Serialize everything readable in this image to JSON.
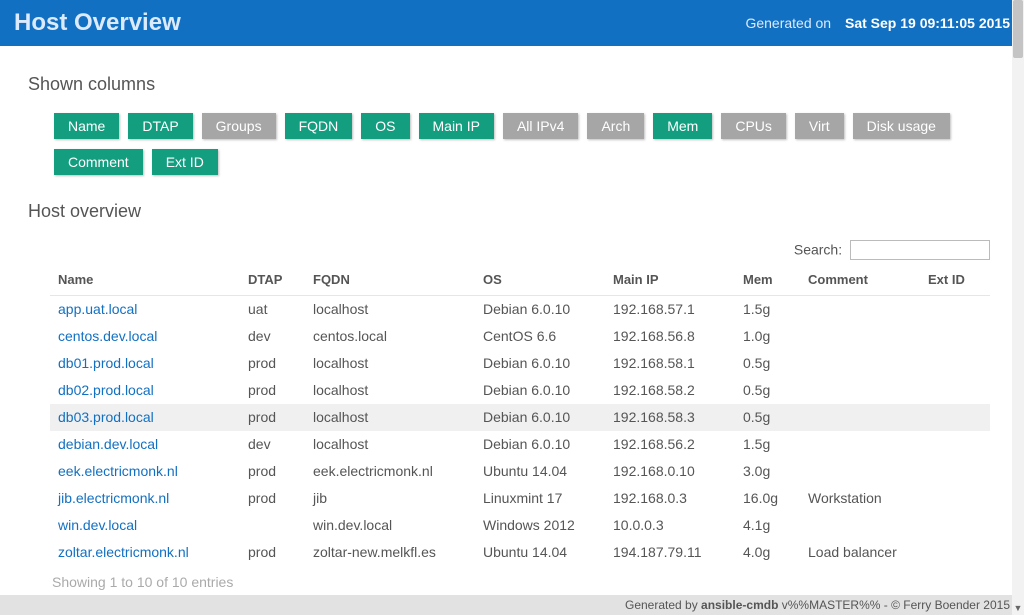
{
  "header": {
    "title": "Host Overview",
    "generated_label": "Generated on",
    "generated_ts": "Sat Sep 19 09:11:05 2015"
  },
  "columns_section_title": "Shown columns",
  "column_toggles": [
    {
      "label": "Name",
      "active": true
    },
    {
      "label": "DTAP",
      "active": true
    },
    {
      "label": "Groups",
      "active": false
    },
    {
      "label": "FQDN",
      "active": true
    },
    {
      "label": "OS",
      "active": true
    },
    {
      "label": "Main IP",
      "active": true
    },
    {
      "label": "All IPv4",
      "active": false
    },
    {
      "label": "Arch",
      "active": false
    },
    {
      "label": "Mem",
      "active": true
    },
    {
      "label": "CPUs",
      "active": false
    },
    {
      "label": "Virt",
      "active": false
    },
    {
      "label": "Disk usage",
      "active": false
    },
    {
      "label": "Comment",
      "active": true
    },
    {
      "label": "Ext ID",
      "active": true
    }
  ],
  "overview_title": "Host overview",
  "search_label": "Search:",
  "search_value": "",
  "table": {
    "columns": [
      "Name",
      "DTAP",
      "FQDN",
      "OS",
      "Main IP",
      "Mem",
      "Comment",
      "Ext ID"
    ],
    "col_widths": [
      "190px",
      "65px",
      "170px",
      "130px",
      "130px",
      "65px",
      "120px",
      "70px"
    ],
    "rows": [
      {
        "name": "app.uat.local",
        "dtap": "uat",
        "fqdn": "localhost",
        "os": "Debian 6.0.10",
        "main_ip": "192.168.57.1",
        "mem": "1.5g",
        "comment": "",
        "ext_id": ""
      },
      {
        "name": "centos.dev.local",
        "dtap": "dev",
        "fqdn": "centos.local",
        "os": "CentOS 6.6",
        "main_ip": "192.168.56.8",
        "mem": "1.0g",
        "comment": "",
        "ext_id": ""
      },
      {
        "name": "db01.prod.local",
        "dtap": "prod",
        "fqdn": "localhost",
        "os": "Debian 6.0.10",
        "main_ip": "192.168.58.1",
        "mem": "0.5g",
        "comment": "",
        "ext_id": ""
      },
      {
        "name": "db02.prod.local",
        "dtap": "prod",
        "fqdn": "localhost",
        "os": "Debian 6.0.10",
        "main_ip": "192.168.58.2",
        "mem": "0.5g",
        "comment": "",
        "ext_id": ""
      },
      {
        "name": "db03.prod.local",
        "dtap": "prod",
        "fqdn": "localhost",
        "os": "Debian 6.0.10",
        "main_ip": "192.168.58.3",
        "mem": "0.5g",
        "comment": "",
        "ext_id": "",
        "highlight": true
      },
      {
        "name": "debian.dev.local",
        "dtap": "dev",
        "fqdn": "localhost",
        "os": "Debian 6.0.10",
        "main_ip": "192.168.56.2",
        "mem": "1.5g",
        "comment": "",
        "ext_id": ""
      },
      {
        "name": "eek.electricmonk.nl",
        "dtap": "prod",
        "fqdn": "eek.electricmonk.nl",
        "os": "Ubuntu 14.04",
        "main_ip": "192.168.0.10",
        "mem": "3.0g",
        "comment": "",
        "ext_id": ""
      },
      {
        "name": "jib.electricmonk.nl",
        "dtap": "prod",
        "fqdn": "jib",
        "os": "Linuxmint 17",
        "main_ip": "192.168.0.3",
        "mem": "16.0g",
        "comment": "Workstation",
        "ext_id": ""
      },
      {
        "name": "win.dev.local",
        "dtap": "",
        "fqdn": "win.dev.local",
        "os": "Windows 2012",
        "main_ip": "10.0.0.3",
        "mem": "4.1g",
        "comment": "",
        "ext_id": ""
      },
      {
        "name": "zoltar.electricmonk.nl",
        "dtap": "prod",
        "fqdn": "zoltar-new.melkfl.es",
        "os": "Ubuntu 14.04",
        "main_ip": "194.187.79.11",
        "mem": "4.0g",
        "comment": "Load balancer",
        "ext_id": ""
      }
    ]
  },
  "table_info": "Showing 1 to 10 of 10 entries",
  "footer": {
    "generated_by_prefix": "Generated by ",
    "product": "ansible-cmdb",
    "version_suffix": " v%%MASTER%% - © Ferry Boender 2015"
  }
}
